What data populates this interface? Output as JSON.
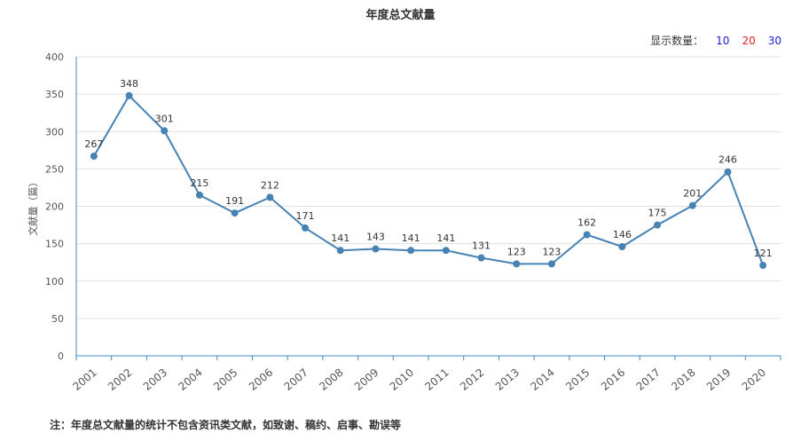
{
  "title": "年度总文献量",
  "controls": {
    "label": "显示数量：",
    "options": [
      {
        "label": "10",
        "color": "#1a1adb"
      },
      {
        "label": "20",
        "color": "#e02020"
      },
      {
        "label": "30",
        "color": "#1a1adb"
      }
    ]
  },
  "note": "注：年度总文献量的统计不包含资讯类文献，如致谢、稿约、启事、勘误等",
  "chart_data": {
    "type": "line",
    "title": "年度总文献量",
    "ylabel": "文献量（篇）",
    "xlabel": "",
    "ylim": [
      0,
      400
    ],
    "yticks": [
      0,
      50,
      100,
      150,
      200,
      250,
      300,
      350,
      400
    ],
    "categories": [
      "2001",
      "2002",
      "2003",
      "2004",
      "2005",
      "2006",
      "2007",
      "2008",
      "2009",
      "2010",
      "2011",
      "2012",
      "2013",
      "2014",
      "2015",
      "2016",
      "2017",
      "2018",
      "2019",
      "2020"
    ],
    "series": [
      {
        "values": [
          267,
          348,
          301,
          215,
          191,
          212,
          171,
          141,
          143,
          141,
          141,
          131,
          123,
          123,
          162,
          146,
          175,
          201,
          246,
          121
        ],
        "color": "#4682b4"
      }
    ],
    "grid": true,
    "legend": "none"
  }
}
